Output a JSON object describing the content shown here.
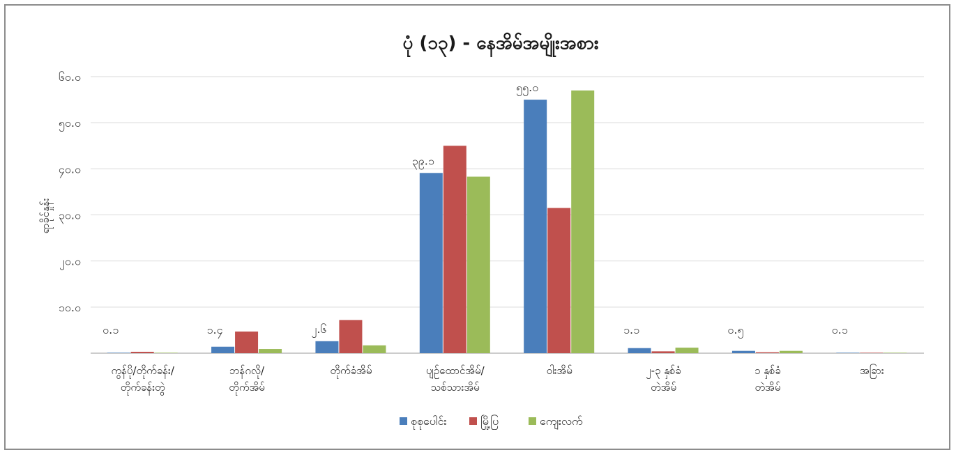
{
  "chart_data": {
    "type": "bar",
    "title": "ပုံ (၁၃) - နေအိမ်အမျိုးအစား",
    "ylabel": "ရာခိုင်နှုန်း",
    "xlabel": "",
    "ylim": [
      0,
      60
    ],
    "ytick_labels": [
      "",
      "၁၀.၀",
      "၂၀.၀",
      "၃၀.၀",
      "၄၀.၀",
      "၅၀.၀",
      "၆၀.၀"
    ],
    "yticks": [
      0,
      10,
      20,
      30,
      40,
      50,
      60
    ],
    "grid": true,
    "legend_position": "bottom",
    "categories": [
      [
        "ကွန်ပို/တိုက်ခန်း/",
        "တိုက်ခန်းတွဲ"
      ],
      [
        "ဘန်ဂလို/",
        "တိုက်အိမ်"
      ],
      [
        "တိုက်ခံအိမ်"
      ],
      [
        "ပျဉ်ထောင်အိမ်/",
        "သစ်သားအိမ်"
      ],
      [
        "ဝါးအိမ်"
      ],
      [
        "၂-၃ နှစ်ခံ",
        "တဲအိမ်"
      ],
      [
        "၁ နှစ်ခံ",
        "တဲအိမ်"
      ],
      [
        "အခြား"
      ]
    ],
    "series": [
      {
        "name": "စုစုပေါင်း",
        "color": "#4a7ebb",
        "values": [
          0.1,
          1.4,
          2.6,
          39.1,
          55.0,
          1.1,
          0.5,
          0.1
        ]
      },
      {
        "name": "မြို့ပြ",
        "color": "#c0504d",
        "values": [
          0.3,
          4.7,
          7.2,
          45.0,
          31.5,
          0.4,
          0.2,
          0.1
        ]
      },
      {
        "name": "ကျေးလက်",
        "color": "#9bbb59",
        "values": [
          0.1,
          0.9,
          1.7,
          38.3,
          57.0,
          1.2,
          0.5,
          0.1
        ]
      }
    ],
    "data_labels": [
      {
        "category_index": 0,
        "text": "၀.၁"
      },
      {
        "category_index": 1,
        "text": "၁.၄"
      },
      {
        "category_index": 2,
        "text": "၂.၆"
      },
      {
        "category_index": 3,
        "text": "၃၉.၁"
      },
      {
        "category_index": 4,
        "text": "၅၅.၀"
      },
      {
        "category_index": 5,
        "text": "၁.၁"
      },
      {
        "category_index": 6,
        "text": "၀.၅"
      },
      {
        "category_index": 7,
        "text": "၀.၁"
      }
    ]
  }
}
